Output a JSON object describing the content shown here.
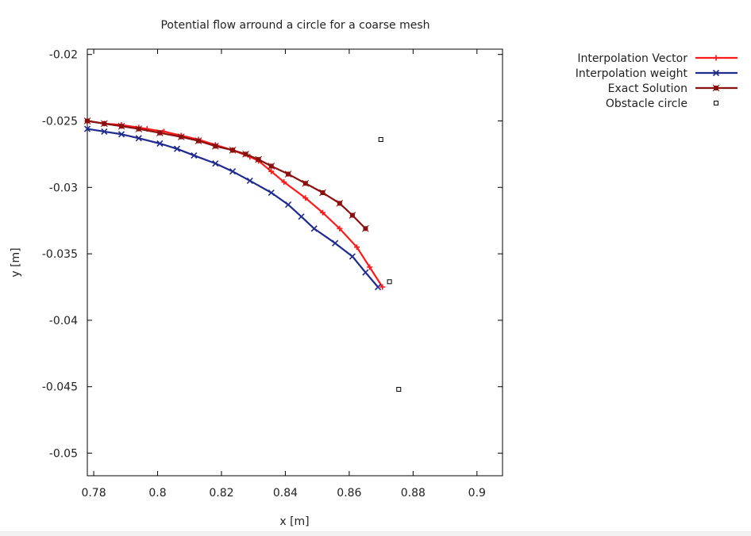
{
  "chart_data": {
    "type": "line",
    "title": "Potential flow arround a circle for a coarse mesh",
    "xlabel": "x [m]",
    "ylabel": "y [m]",
    "xlim": [
      0.778,
      0.908
    ],
    "ylim": [
      -0.0517,
      -0.0196
    ],
    "xticks": [
      0.78,
      0.8,
      0.82,
      0.84,
      0.86,
      0.88,
      0.9
    ],
    "xtick_labels": [
      "0.78",
      "0.8",
      "0.82",
      "0.84",
      "0.86",
      "0.88",
      "0.9"
    ],
    "yticks": [
      -0.02,
      -0.025,
      -0.03,
      -0.035,
      -0.04,
      -0.045,
      -0.05
    ],
    "ytick_labels": [
      "-0.02",
      "-0.025",
      "-0.03",
      "-0.035",
      "-0.04",
      "-0.045",
      "-0.05"
    ],
    "grid": false,
    "legend_position": "outside-top-right",
    "series": [
      {
        "name": "Interpolation Vector",
        "color": "#ff1a1a",
        "marker": "plus",
        "x": [
          0.778,
          0.7833,
          0.7887,
          0.7941,
          0.7967,
          0.802,
          0.8074,
          0.8128,
          0.8181,
          0.8235,
          0.8289,
          0.8316,
          0.8356,
          0.8396,
          0.8463,
          0.8517,
          0.857,
          0.8624,
          0.8664,
          0.8704
        ],
        "y": [
          -0.025,
          -0.0252,
          -0.0253,
          -0.0255,
          -0.0256,
          -0.0258,
          -0.0261,
          -0.0264,
          -0.0268,
          -0.0272,
          -0.0277,
          -0.028,
          -0.0288,
          -0.0296,
          -0.0308,
          -0.0319,
          -0.0331,
          -0.0345,
          -0.036,
          -0.0375
        ]
      },
      {
        "name": "Interpolation weight",
        "color": "#1f2a8f",
        "marker": "cross",
        "x": [
          0.778,
          0.7833,
          0.7887,
          0.7941,
          0.8007,
          0.8061,
          0.8114,
          0.8181,
          0.8235,
          0.8289,
          0.8356,
          0.8409,
          0.845,
          0.849,
          0.8556,
          0.861,
          0.8651,
          0.869
        ],
        "y": [
          -0.0256,
          -0.0258,
          -0.026,
          -0.0263,
          -0.0267,
          -0.0271,
          -0.0276,
          -0.0282,
          -0.0288,
          -0.0295,
          -0.0304,
          -0.0313,
          -0.0322,
          -0.0331,
          -0.0342,
          -0.0352,
          -0.0364,
          -0.0375
        ]
      },
      {
        "name": "Exact Solution",
        "color": "#8b1010",
        "marker": "filled-box",
        "x": [
          0.778,
          0.7833,
          0.7887,
          0.7941,
          0.8007,
          0.8074,
          0.8128,
          0.8181,
          0.8235,
          0.8276,
          0.8316,
          0.8356,
          0.8409,
          0.8463,
          0.8517,
          0.857,
          0.861,
          0.8651
        ],
        "y": [
          -0.025,
          -0.0252,
          -0.0254,
          -0.0256,
          -0.0259,
          -0.0262,
          -0.0265,
          -0.0269,
          -0.0272,
          -0.0275,
          -0.0279,
          -0.0284,
          -0.029,
          -0.0297,
          -0.0304,
          -0.0312,
          -0.0321,
          -0.0331
        ]
      },
      {
        "name": "Obstacle circle",
        "color": "#000000",
        "marker": "open-box",
        "style": "points",
        "x": [
          0.8699,
          0.8726,
          0.8755
        ],
        "y": [
          -0.0264,
          -0.0371,
          -0.0452
        ]
      }
    ]
  }
}
